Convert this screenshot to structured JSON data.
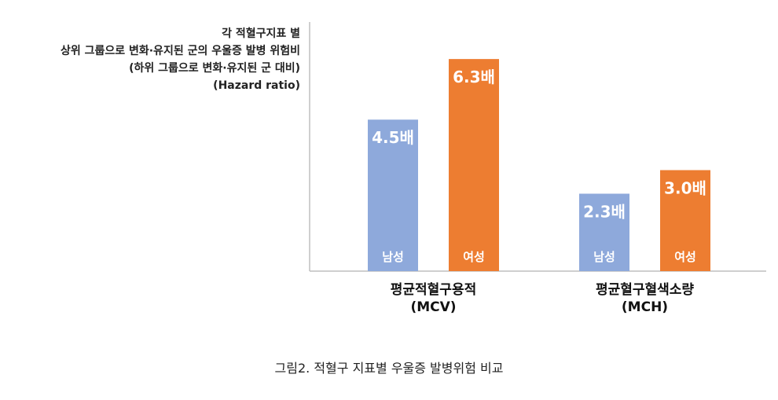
{
  "chart_data": {
    "type": "bar",
    "ylabel_lines": [
      "각 적혈구지표 별",
      "상위 그룹으로 변화·유지된 군의 우울증 발병 위험비",
      "(하위 그룹으로 변화·유지된 군 대비)",
      "(Hazard ratio)"
    ],
    "categories": [
      {
        "name": "평균적혈구용적",
        "abbr": "(MCV)"
      },
      {
        "name": "평균혈구혈색소량",
        "abbr": "(MCH)"
      }
    ],
    "series": [
      {
        "name": "남성",
        "color": "#8EA9DB",
        "values": [
          4.5,
          2.3
        ],
        "value_labels": [
          "4.5배",
          "2.3배"
        ]
      },
      {
        "name": "여성",
        "color": "#ED7D31",
        "values": [
          6.3,
          3.0
        ],
        "value_labels": [
          "6.3배",
          "3.0배"
        ]
      }
    ],
    "ylim": [
      0,
      7.4
    ],
    "grid": false,
    "legend": "none"
  },
  "caption": "그림2. 적혈구 지표별 우울증 발병위험 비교",
  "colors": {
    "axis": "#bfbfbf"
  }
}
